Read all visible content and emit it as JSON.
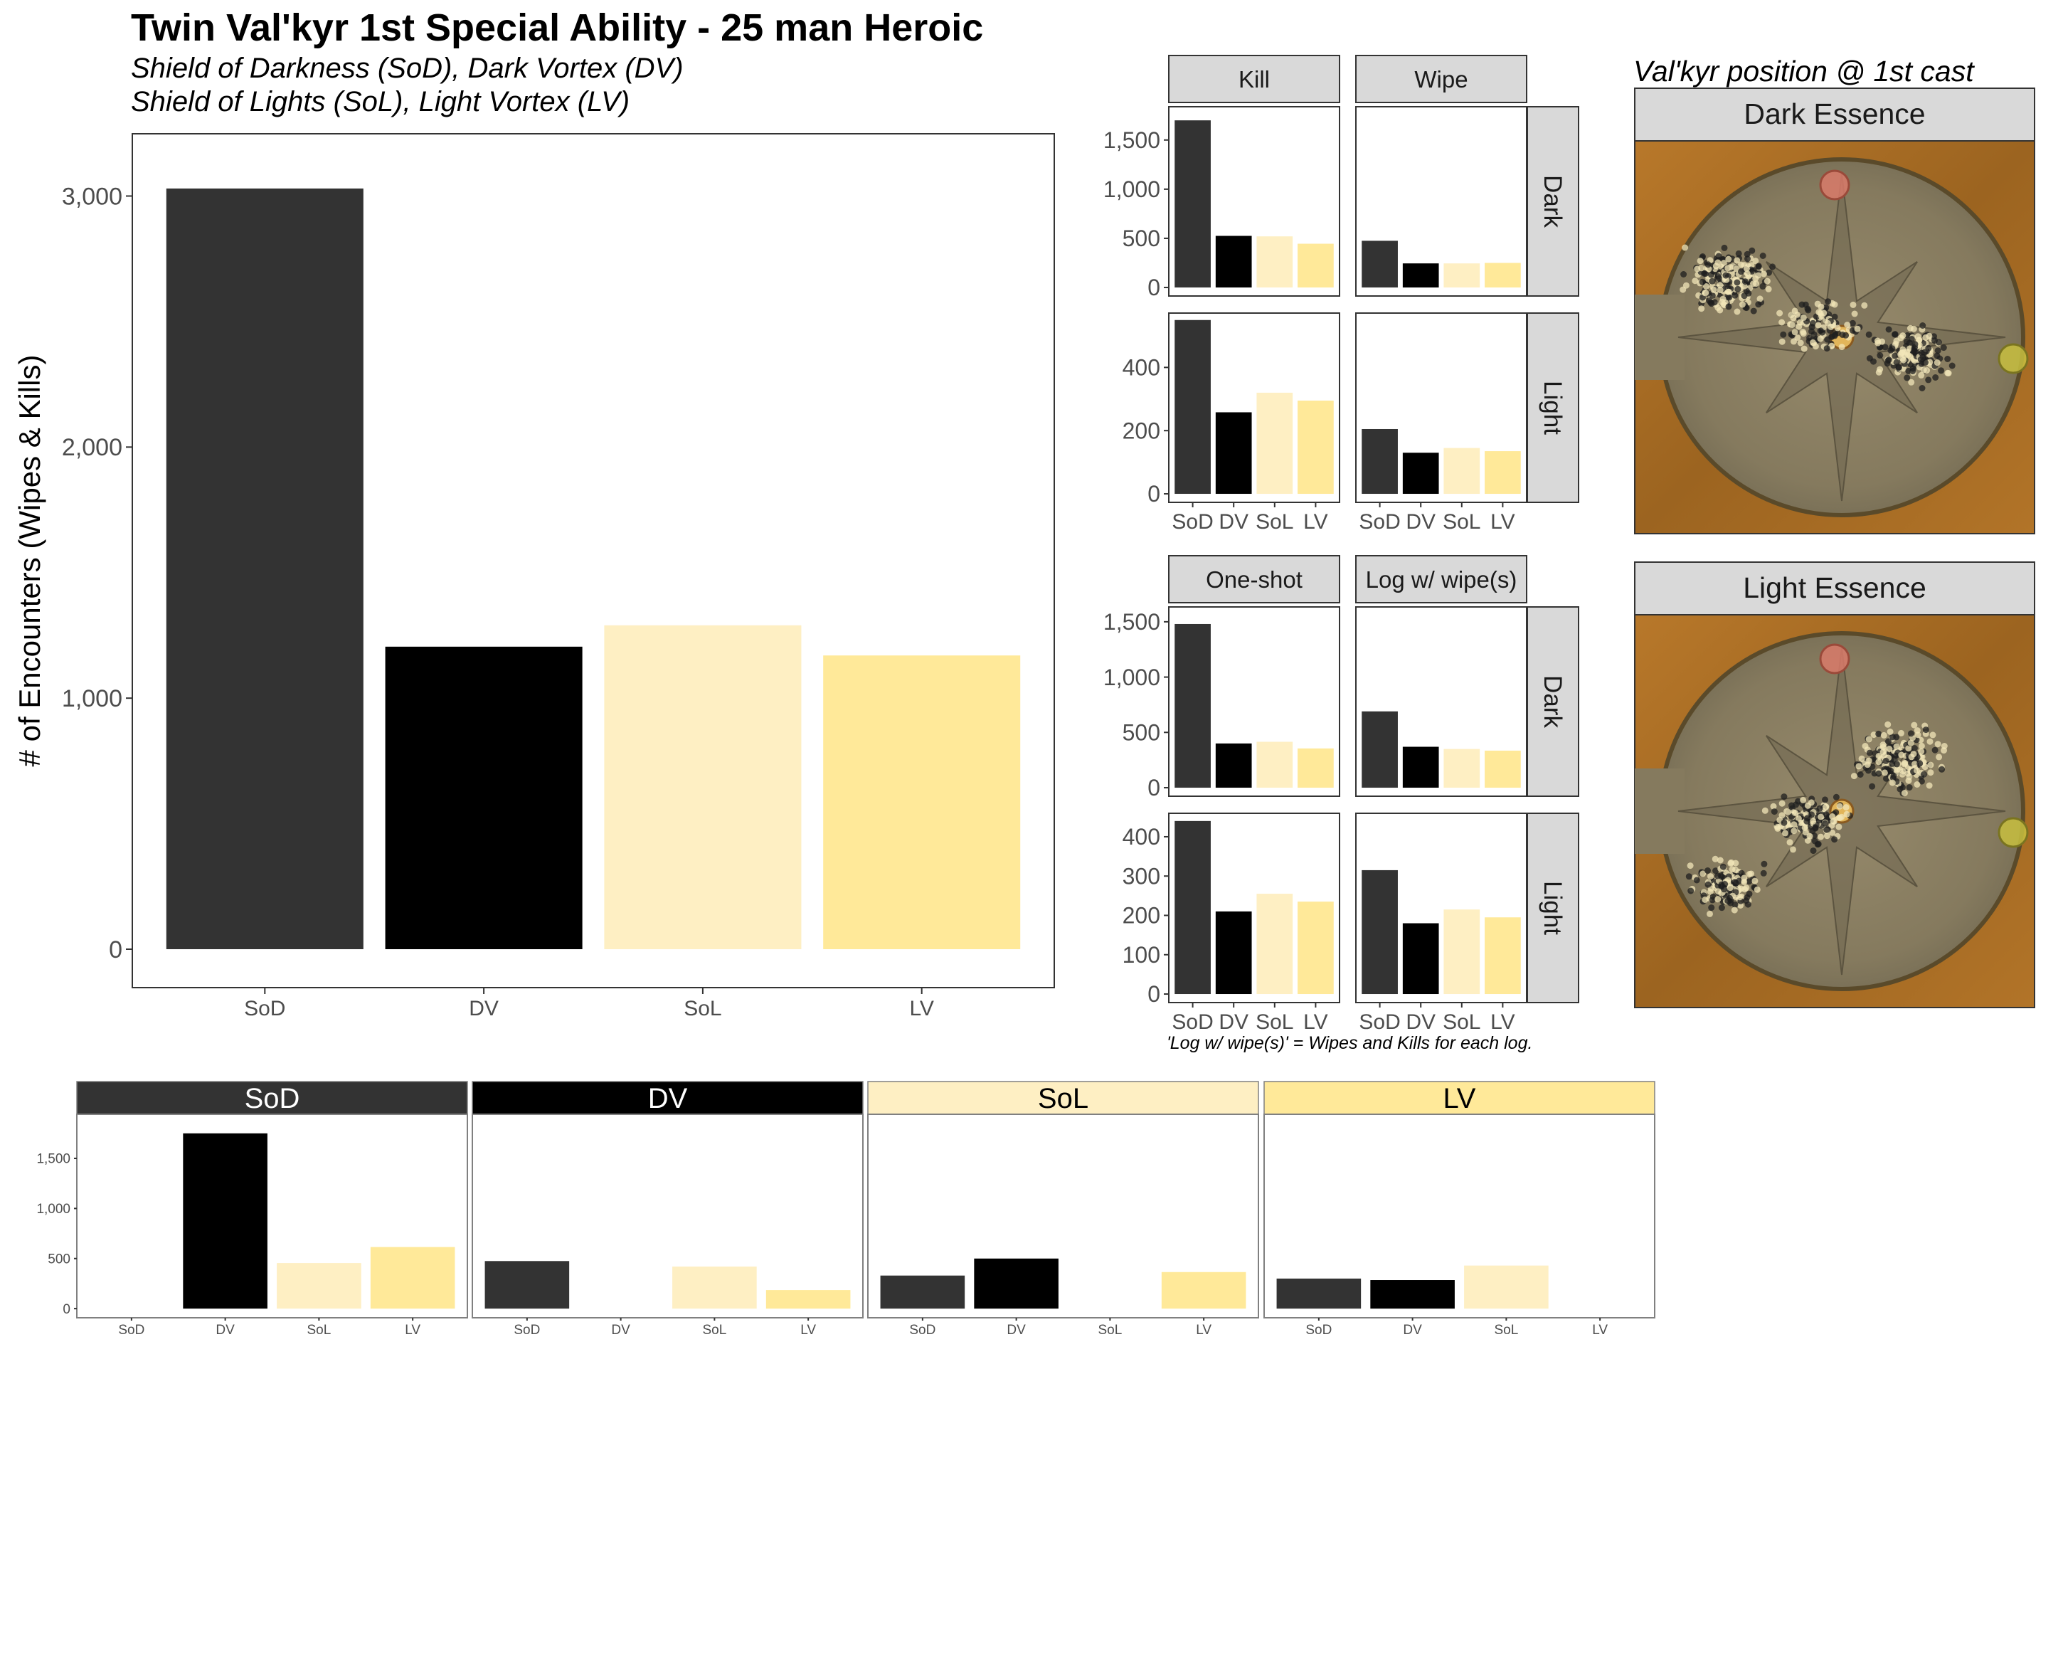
{
  "header": {
    "title": "Twin Val'kyr 1st Special Ability - 25 man Heroic",
    "subtitle_1": "Shield of Darkness (SoD), Dark Vortex (DV)",
    "subtitle_2": "Shield of Lights (SoL), Light Vortex (LV)"
  },
  "colors": {
    "SoD": "#333333",
    "DV": "#000000",
    "SoL": "#FEEFC3",
    "LV": "#FFE999",
    "strip_bg": "#D9D9D9",
    "map_stone": "#8B7F63",
    "map_rim": "#A66A1F"
  },
  "chart_data": [
    {
      "type": "bar",
      "id": "main",
      "categories": [
        "SoD",
        "DV",
        "SoL",
        "LV"
      ],
      "values": [
        3030,
        1205,
        1290,
        1170
      ],
      "ylabel": "# of Encounters (Wipes & Kills)",
      "xlabel": "",
      "yticks": [
        0,
        1000,
        2000,
        3000
      ],
      "ytick_labels": [
        "0",
        "1,000",
        "2,000",
        "3,000"
      ],
      "ylim": [
        0,
        3180
      ],
      "grid": false
    },
    {
      "type": "bar",
      "id": "kill_wipe_facets",
      "columns": [
        "Kill",
        "Wipe"
      ],
      "rows": [
        "Dark",
        "Light"
      ],
      "categories": [
        "SoD",
        "DV",
        "SoL",
        "LV"
      ],
      "panels": {
        "Dark": {
          "yticks": [
            0,
            500,
            1000,
            1500
          ],
          "ytick_labels": [
            "0",
            "500",
            "1,000",
            "1,500"
          ],
          "ylim": [
            0,
            1800
          ],
          "Kill": [
            1700,
            525,
            520,
            445
          ],
          "Wipe": [
            475,
            245,
            245,
            250
          ]
        },
        "Light": {
          "yticks": [
            0,
            200,
            400
          ],
          "ytick_labels": [
            "0",
            "200",
            "400"
          ],
          "ylim": [
            0,
            560
          ],
          "Kill": [
            550,
            258,
            320,
            295
          ],
          "Wipe": [
            205,
            130,
            145,
            135
          ]
        }
      }
    },
    {
      "type": "bar",
      "id": "oneshot_log_facets",
      "columns": [
        "One-shot",
        "Log w/ wipe(s)"
      ],
      "rows": [
        "Dark",
        "Light"
      ],
      "categories": [
        "SoD",
        "DV",
        "SoL",
        "LV"
      ],
      "note": "'Log w/ wipe(s)' = Wipes and Kills for each log.",
      "panels": {
        "Dark": {
          "yticks": [
            0,
            500,
            1000,
            1500
          ],
          "ytick_labels": [
            "0",
            "500",
            "1,000",
            "1,500"
          ],
          "ylim": [
            0,
            1600
          ],
          "One-shot": [
            1480,
            400,
            415,
            355
          ],
          "Log w/ wipe(s)": [
            690,
            370,
            350,
            335
          ]
        },
        "Light": {
          "yticks": [
            0,
            100,
            200,
            300,
            400
          ],
          "ytick_labels": [
            "0",
            "100",
            "200",
            "300",
            "400"
          ],
          "ylim": [
            0,
            450
          ],
          "One-shot": [
            440,
            210,
            255,
            235
          ],
          "Log w/ wipe(s)": [
            315,
            180,
            215,
            195
          ]
        }
      }
    },
    {
      "type": "bar",
      "id": "transition_facets",
      "facets": [
        "SoD",
        "DV",
        "SoL",
        "LV"
      ],
      "categories": [
        "SoD",
        "DV",
        "SoL",
        "LV"
      ],
      "yticks": [
        0,
        500,
        1000,
        1500
      ],
      "ytick_labels": [
        "0",
        "500",
        "1,000",
        "1,500"
      ],
      "ylim": [
        0,
        1900
      ],
      "panels": {
        "SoD": [
          0,
          1750,
          455,
          615
        ],
        "DV": [
          475,
          0,
          420,
          185
        ],
        "SoL": [
          330,
          500,
          0,
          365
        ],
        "LV": [
          300,
          285,
          430,
          0
        ]
      }
    }
  ],
  "maps": {
    "heading": "Val'kyr  position @ 1st cast",
    "panels": [
      "Dark Essence",
      "Light Essence"
    ]
  }
}
